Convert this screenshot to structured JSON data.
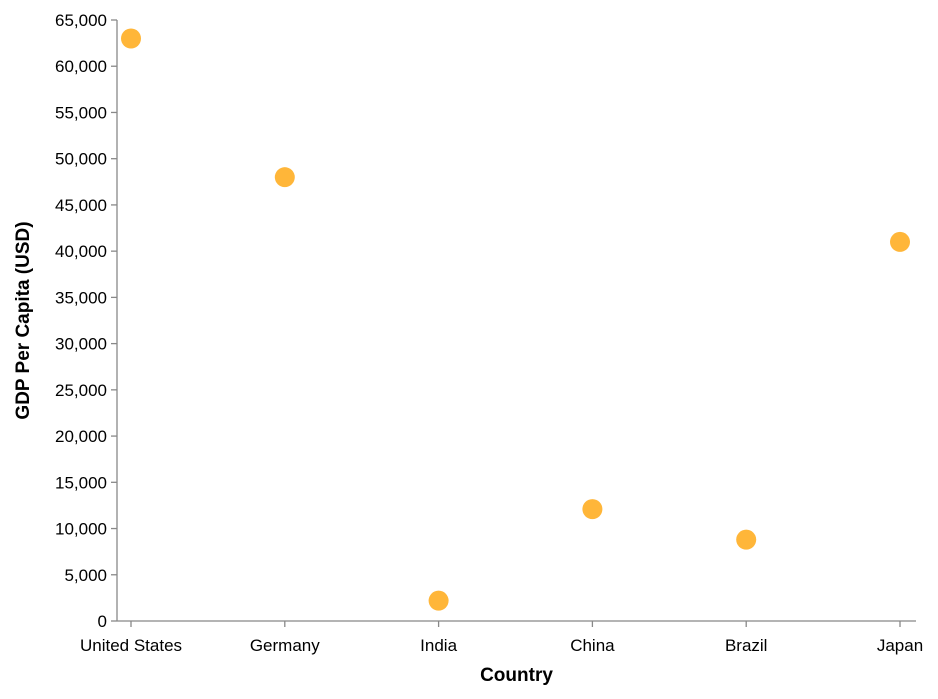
{
  "chart_data": {
    "type": "scatter",
    "xlabel": "Country",
    "ylabel": "GDP Per Capita (USD)",
    "categories": [
      "United States",
      "Germany",
      "India",
      "China",
      "Brazil",
      "Japan"
    ],
    "series": [
      {
        "values": [
          63000,
          48000,
          2200,
          12100,
          8800,
          41000
        ]
      }
    ],
    "ylim": [
      0,
      65000
    ],
    "yticks": [
      "0",
      "5,000",
      "10,000",
      "15,000",
      "20,000",
      "25,000",
      "30,000",
      "35,000",
      "40,000",
      "45,000",
      "50,000",
      "55,000",
      "60,000",
      "65,000"
    ],
    "ytick_values": [
      0,
      5000,
      10000,
      15000,
      20000,
      25000,
      30000,
      35000,
      40000,
      45000,
      50000,
      55000,
      60000,
      65000
    ],
    "grid": false,
    "colors": {
      "point": "#ffb22e",
      "axis": "#888888"
    }
  }
}
